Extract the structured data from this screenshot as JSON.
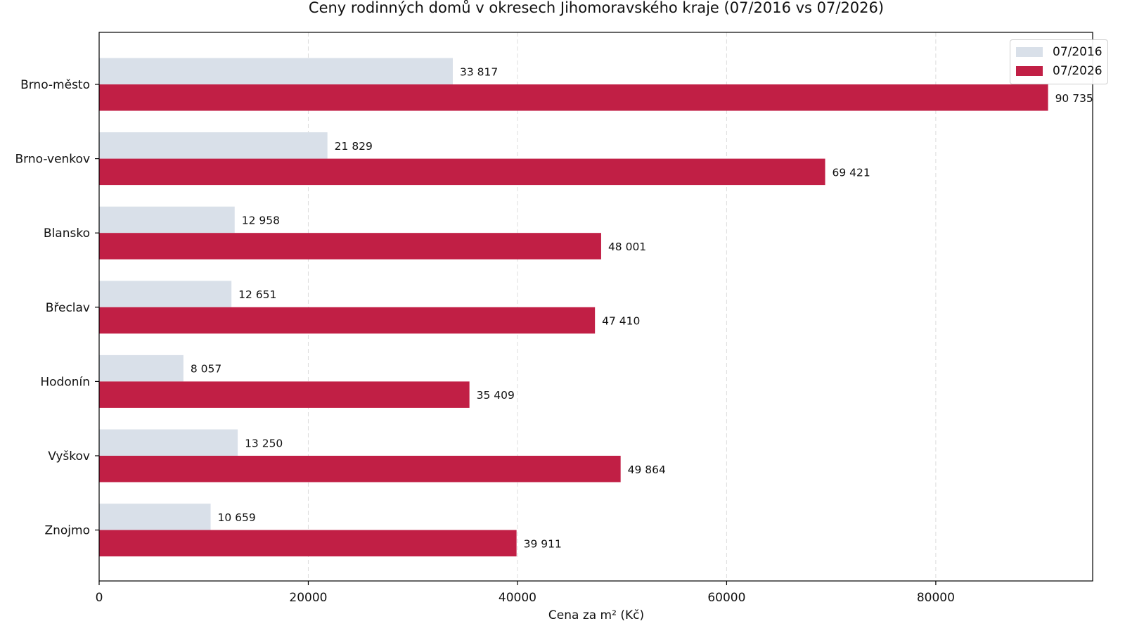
{
  "chart_data": {
    "type": "bar",
    "orientation": "horizontal",
    "title": "Ceny rodinných domů v okresech Jihomoravského kraje (07/2016 vs 07/2026)",
    "xlabel": "Cena za m² (Kč)",
    "ylabel": "",
    "xlim": [
      0,
      95000
    ],
    "xticks": [
      0,
      20000,
      40000,
      60000,
      80000
    ],
    "xtick_labels": [
      "0",
      "20000",
      "40000",
      "60000",
      "80000"
    ],
    "grid": "x, dashed",
    "legend_position": "top-right",
    "categories": [
      "Brno-město",
      "Brno-venkov",
      "Blansko",
      "Břeclav",
      "Hodonín",
      "Vyškov",
      "Znojmo"
    ],
    "series": [
      {
        "name": "07/2016",
        "color": "#d9e0e9",
        "values": [
          33817,
          21829,
          12958,
          12651,
          8057,
          13250,
          10659
        ],
        "labels": [
          "33 817",
          "21 829",
          "12 958",
          "12 651",
          "8 057",
          "13 250",
          "10 659"
        ]
      },
      {
        "name": "07/2026",
        "color": "#c11f45",
        "values": [
          90735,
          69421,
          48001,
          47410,
          35409,
          49864,
          39911
        ],
        "labels": [
          "90 735",
          "69 421",
          "48 001",
          "47 410",
          "35 409",
          "49 864",
          "39 911"
        ]
      }
    ]
  }
}
